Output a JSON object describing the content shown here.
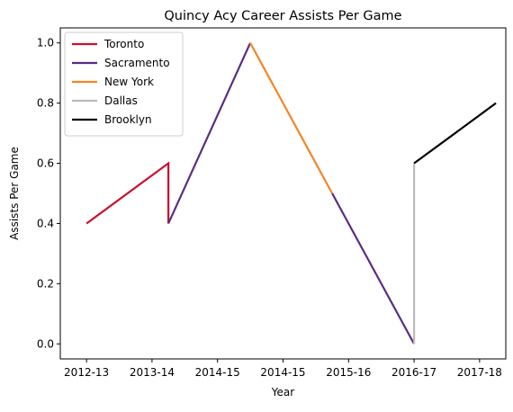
{
  "chart_data": {
    "type": "line",
    "title": "Quincy Acy Career Assists Per Game",
    "xlabel": "Year",
    "ylabel": "Assists Per Game",
    "x_tick_labels": [
      "2012-13",
      "2013-14",
      "2014-15",
      "2014-15",
      "2015-16",
      "2016-17",
      "2017-18"
    ],
    "x_tick_positions": [
      0,
      1,
      2,
      3,
      4,
      5,
      6
    ],
    "xlim": [
      -0.4,
      6.4
    ],
    "ylim": [
      -0.05,
      1.05
    ],
    "y_ticks": [
      0.0,
      0.2,
      0.4,
      0.6,
      0.8,
      1.0
    ],
    "y_tick_labels": [
      "0.0",
      "0.2",
      "0.4",
      "0.6",
      "0.8",
      "1.0"
    ],
    "grid": false,
    "legend_position": "top-left",
    "series": [
      {
        "name": "Toronto",
        "color": "#c8102e",
        "points": [
          [
            0,
            0.4
          ],
          [
            1.25,
            0.6
          ],
          [
            1.25,
            0.4
          ]
        ]
      },
      {
        "name": "Sacramento",
        "color": "#5a2d81",
        "points": [
          [
            1.25,
            0.4
          ],
          [
            2.5,
            1.0
          ]
        ]
      },
      {
        "name": "New York",
        "color": "#f58426",
        "points": [
          [
            2.5,
            1.0
          ],
          [
            3.75,
            0.5
          ]
        ]
      },
      {
        "name": "Sacramento",
        "color": "#5a2d81",
        "points": [
          [
            3.75,
            0.5
          ],
          [
            5.0,
            0.0
          ]
        ]
      },
      {
        "name": "Dallas",
        "color": "#bbbbbb",
        "points": [
          [
            5.0,
            0.0
          ],
          [
            5.0,
            0.6
          ]
        ]
      },
      {
        "name": "Brooklyn",
        "color": "#000000",
        "points": [
          [
            5.0,
            0.6
          ],
          [
            6.25,
            0.8
          ]
        ]
      }
    ],
    "legend": [
      {
        "name": "Toronto",
        "color": "#c8102e"
      },
      {
        "name": "Sacramento",
        "color": "#5a2d81"
      },
      {
        "name": "New York",
        "color": "#f58426"
      },
      {
        "name": "Dallas",
        "color": "#bbbbbb"
      },
      {
        "name": "Brooklyn",
        "color": "#000000"
      }
    ]
  }
}
